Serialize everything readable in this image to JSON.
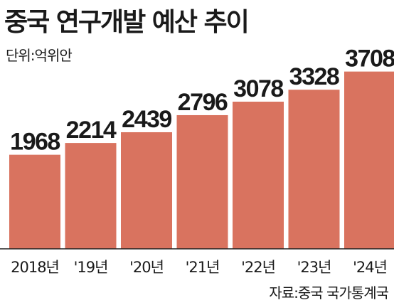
{
  "title": "중국 연구개발 예산 추이",
  "unit_label": "단위:억위안",
  "source": "자료:중국 국가통계국",
  "colors": {
    "bar": "#d9735f",
    "axis": "#222222",
    "text": "#1a1a1a"
  },
  "chart_data": {
    "type": "bar",
    "categories": [
      "2018년",
      "'19년",
      "'20년",
      "'21년",
      "'22년",
      "'23년",
      "'24년"
    ],
    "values": [
      1968,
      2214,
      2439,
      2796,
      3078,
      3328,
      3708
    ],
    "data_labels": [
      "1968",
      "2214",
      "2439",
      "2796",
      "3078",
      "3328",
      "3708"
    ],
    "title": "중국 연구개발 예산 추이",
    "xlabel": "",
    "ylabel": "",
    "grid": false,
    "legend": "none"
  }
}
